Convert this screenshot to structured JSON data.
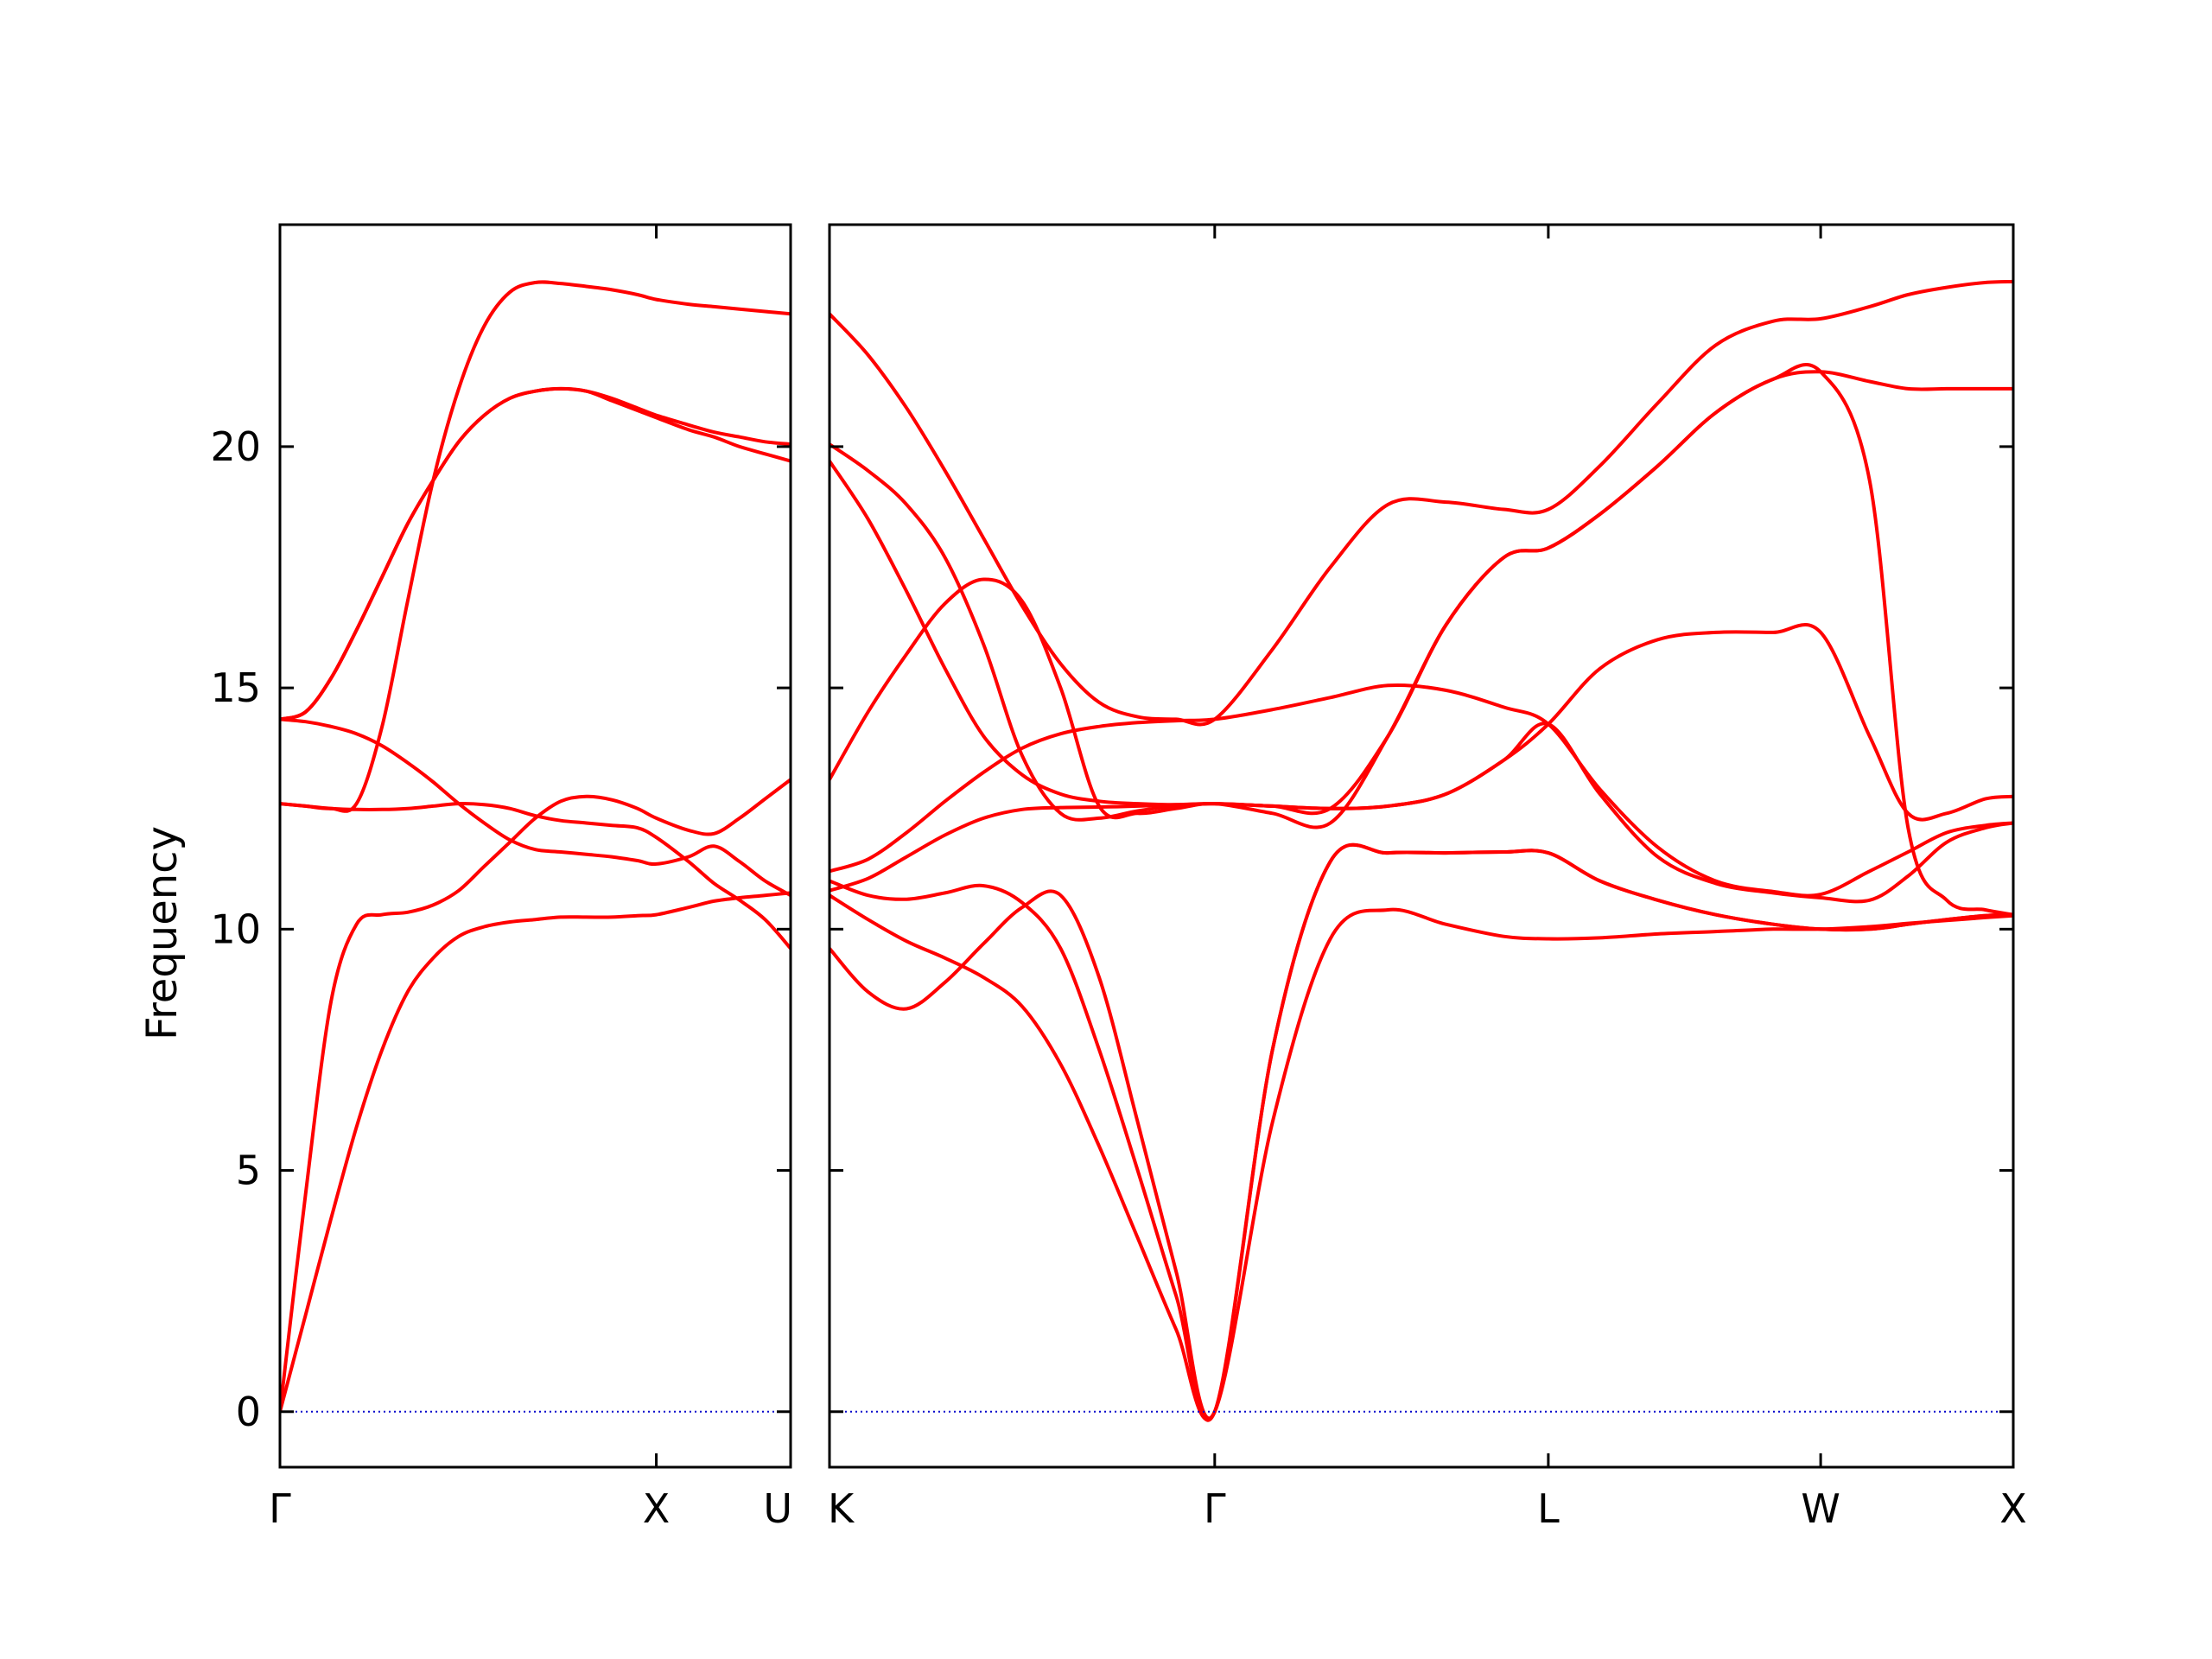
{
  "chart_data": {
    "type": "line",
    "ylabel": "Frequency",
    "ylim": [
      -1.15,
      24.6
    ],
    "yticks": [
      0,
      5,
      10,
      15,
      20
    ],
    "colors": {
      "bands": "#ff0000",
      "zero_line": "#0000cc",
      "frame": "#000000"
    },
    "zero_line": {
      "value": 0,
      "style": "dotted"
    },
    "panels": [
      {
        "name": "Γ–X–U",
        "x_labels": [
          "Γ",
          "X",
          "U"
        ],
        "series": [
          {
            "x": [
              0,
              0.05,
              0.1,
              0.15,
              0.2,
              0.25,
              0.3,
              0.35,
              0.4,
              0.45,
              0.5,
              0.55,
              0.6,
              0.65,
              0.7,
              0.737,
              0.8,
              0.85,
              0.9,
              0.95,
              1.0
            ],
            "y": [
              0,
              2.0,
              4.0,
              5.9,
              7.5,
              8.7,
              9.4,
              9.85,
              10.05,
              10.15,
              10.2,
              10.25,
              10.25,
              10.25,
              10.28,
              10.3,
              10.45,
              10.58,
              10.65,
              10.7,
              10.75
            ]
          },
          {
            "x": [
              0,
              0.05,
              0.1,
              0.15,
              0.2,
              0.25,
              0.3,
              0.35,
              0.4,
              0.45,
              0.5,
              0.55,
              0.6,
              0.65,
              0.7,
              0.737,
              0.8,
              0.85,
              0.9,
              0.95,
              1.0
            ],
            "y": [
              0,
              4.5,
              8.5,
              10.1,
              10.3,
              10.35,
              10.5,
              10.8,
              11.3,
              11.8,
              12.3,
              12.65,
              12.75,
              12.68,
              12.5,
              12.3,
              12.05,
              11.98,
              12.3,
              12.7,
              13.1
            ]
          },
          {
            "x": [
              0,
              0.05,
              0.1,
              0.15,
              0.2,
              0.25,
              0.3,
              0.35,
              0.4,
              0.45,
              0.5,
              0.55,
              0.6,
              0.65,
              0.7,
              0.737,
              0.8,
              0.85,
              0.9,
              0.95,
              1.0
            ],
            "y": [
              12.6,
              12.55,
              12.5,
              12.48,
              12.48,
              12.5,
              12.55,
              12.6,
              12.58,
              12.5,
              12.35,
              12.25,
              12.2,
              12.15,
              12.1,
              11.9,
              11.4,
              10.95,
              10.6,
              10.2,
              9.6
            ]
          },
          {
            "x": [
              0,
              0.05,
              0.1,
              0.15,
              0.2,
              0.25,
              0.3,
              0.35,
              0.4,
              0.45,
              0.5,
              0.55,
              0.6,
              0.65,
              0.7,
              0.737,
              0.8,
              0.85,
              0.9,
              0.95,
              1.0
            ],
            "y": [
              14.35,
              14.3,
              14.2,
              14.05,
              13.8,
              13.45,
              13.05,
              12.6,
              12.2,
              11.85,
              11.65,
              11.6,
              11.55,
              11.5,
              11.42,
              11.35,
              11.5,
              11.72,
              11.4,
              11.0,
              10.7
            ]
          },
          {
            "x": [
              0,
              0.05,
              0.1,
              0.15,
              0.2,
              0.25,
              0.3,
              0.35,
              0.4,
              0.45,
              0.5,
              0.55,
              0.6,
              0.65,
              0.7,
              0.737,
              0.8,
              0.85,
              0.9,
              0.95,
              1.0
            ],
            "y": [
              12.6,
              12.55,
              12.5,
              12.6,
              14.2,
              16.8,
              19.3,
              21.2,
              22.5,
              23.2,
              23.4,
              23.38,
              23.32,
              23.25,
              23.15,
              23.05,
              22.95,
              22.9,
              22.85,
              22.8,
              22.75
            ]
          },
          {
            "x": [
              0,
              0.05,
              0.1,
              0.15,
              0.2,
              0.25,
              0.3,
              0.35,
              0.4,
              0.45,
              0.5,
              0.55,
              0.6,
              0.65,
              0.7,
              0.737,
              0.8,
              0.85,
              0.9,
              0.95,
              1.0
            ],
            "y": [
              14.35,
              14.5,
              15.2,
              16.2,
              17.3,
              18.4,
              19.3,
              20.1,
              20.65,
              21.0,
              21.15,
              21.2,
              21.15,
              21.0,
              20.8,
              20.65,
              20.45,
              20.3,
              20.2,
              20.1,
              20.05
            ]
          },
          {
            "x": [
              0,
              0.05,
              0.1,
              0.15,
              0.2,
              0.25,
              0.3,
              0.35,
              0.4,
              0.45,
              0.5,
              0.55,
              0.6,
              0.65,
              0.7,
              0.737,
              0.8,
              0.85,
              0.9,
              0.95,
              1.0
            ],
            "y": [
              14.35,
              14.5,
              15.2,
              16.2,
              17.3,
              18.4,
              19.3,
              20.1,
              20.65,
              21.0,
              21.15,
              21.2,
              21.15,
              20.95,
              20.75,
              20.6,
              20.35,
              20.2,
              20.0,
              19.85,
              19.7
            ]
          }
        ]
      },
      {
        "name": "K–Γ–L–W–X",
        "x_labels": [
          "K",
          "Γ",
          "L",
          "W",
          "X"
        ],
        "x_ticks": [
          0,
          1.0,
          1.866,
          2.573,
          3.073
        ],
        "series": [
          {
            "x": [
              0,
              0.1,
              0.2,
              0.3,
              0.4,
              0.5,
              0.6,
              0.7,
              0.8,
              0.9,
              1.0,
              1.15,
              1.3,
              1.45,
              1.6,
              1.75,
              1.866,
              2.0,
              2.15,
              2.3,
              2.45,
              2.573,
              2.7,
              2.8,
              2.9,
              3.0,
              3.073
            ],
            "y": [
              10.7,
              10.2,
              9.75,
              9.4,
              9.0,
              8.4,
              7.2,
              5.5,
              3.6,
              1.7,
              0,
              6.0,
              9.8,
              10.4,
              10.1,
              9.85,
              9.8,
              9.82,
              9.9,
              9.95,
              10.0,
              10.0,
              10.05,
              10.12,
              10.18,
              10.24,
              10.28
            ]
          },
          {
            "x": [
              0,
              0.1,
              0.2,
              0.3,
              0.4,
              0.5,
              0.6,
              0.7,
              0.8,
              0.9,
              1.0,
              1.15,
              1.3,
              1.45,
              1.6,
              1.75,
              1.866,
              2.0,
              2.15,
              2.3,
              2.45,
              2.573,
              2.7,
              2.8,
              2.9,
              3.0,
              3.073
            ],
            "y": [
              11.0,
              10.7,
              10.62,
              10.75,
              10.9,
              10.55,
              9.6,
              7.5,
              5.0,
              2.4,
              0,
              7.5,
              11.4,
              11.58,
              11.58,
              11.6,
              11.58,
              11.0,
              10.6,
              10.3,
              10.1,
              10.0,
              10.0,
              10.1,
              10.2,
              10.28,
              10.3
            ]
          },
          {
            "x": [
              0,
              0.1,
              0.2,
              0.3,
              0.4,
              0.5,
              0.6,
              0.7,
              0.8,
              0.9,
              1.0,
              1.15,
              1.3,
              1.45,
              1.6,
              1.75,
              1.866,
              2.0,
              2.15,
              2.3,
              2.45,
              2.573,
              2.7,
              2.8,
              2.9,
              3.0,
              3.073
            ],
            "y": [
              9.6,
              8.7,
              8.35,
              8.9,
              9.7,
              10.45,
              10.7,
              9.0,
              6.0,
              2.9,
              0,
              7.5,
              11.4,
              11.58,
              11.58,
              11.6,
              11.58,
              11.0,
              10.6,
              10.3,
              10.1,
              10.0,
              10.0,
              10.1,
              10.2,
              10.28,
              10.3
            ]
          },
          {
            "x": [
              0,
              0.1,
              0.2,
              0.3,
              0.4,
              0.5,
              0.6,
              0.7,
              0.8,
              0.9,
              1.0,
              1.15,
              1.3,
              1.45,
              1.6,
              1.75,
              1.866,
              2.0,
              2.15,
              2.3,
              2.45,
              2.573,
              2.7,
              2.8,
              2.9,
              3.0,
              3.073
            ],
            "y": [
              10.8,
              11.05,
              11.5,
              11.95,
              12.3,
              12.48,
              12.52,
              12.53,
              12.55,
              12.58,
              12.6,
              12.55,
              12.5,
              12.55,
              12.8,
              13.5,
              14.25,
              12.8,
              11.5,
              10.95,
              10.75,
              10.65,
              10.6,
              11.1,
              11.8,
              12.1,
              12.2
            ]
          },
          {
            "x": [
              0,
              0.1,
              0.2,
              0.3,
              0.4,
              0.5,
              0.6,
              0.7,
              0.8,
              0.9,
              1.0,
              1.15,
              1.3,
              1.45,
              1.6,
              1.75,
              1.866,
              2.0,
              2.15,
              2.3,
              2.45,
              2.573,
              2.7,
              2.8,
              2.9,
              3.0,
              3.073
            ],
            "y": [
              11.2,
              11.45,
              12.0,
              12.65,
              13.25,
              13.75,
              14.05,
              14.2,
              14.28,
              14.32,
              14.35,
              14.55,
              14.8,
              15.05,
              14.95,
              14.6,
              14.25,
              12.9,
              11.7,
              11.0,
              10.78,
              10.72,
              11.2,
              11.6,
              12.0,
              12.15,
              12.2
            ]
          },
          {
            "x": [
              0,
              0.1,
              0.2,
              0.3,
              0.4,
              0.5,
              0.6,
              0.7,
              0.8,
              0.9,
              1.0,
              1.15,
              1.3,
              1.45,
              1.6,
              1.75,
              1.866,
              2.0,
              2.15,
              2.3,
              2.45,
              2.573,
              2.7,
              2.8,
              2.9,
              3.0,
              3.073
            ],
            "y": [
              13.1,
              14.5,
              15.7,
              16.75,
              17.25,
              16.8,
              15.0,
              12.55,
              12.4,
              12.5,
              12.6,
              12.4,
              12.2,
              14.0,
              16.3,
              17.7,
              17.9,
              18.6,
              19.6,
              20.7,
              21.4,
              21.55,
              21.35,
              21.2,
              21.2,
              21.2,
              21.2
            ]
          },
          {
            "x": [
              0,
              0.1,
              0.2,
              0.3,
              0.4,
              0.5,
              0.6,
              0.7,
              0.8,
              0.9,
              1.0,
              1.15,
              1.3,
              1.45,
              1.6,
              1.75,
              1.866,
              2.0,
              2.15,
              2.3,
              2.45,
              2.573,
              2.7,
              2.8,
              2.9,
              3.0,
              3.073
            ],
            "y": [
              20.05,
              19.5,
              18.8,
              17.7,
              15.9,
              13.6,
              12.4,
              12.3,
              12.45,
              12.55,
              12.6,
              12.55,
              12.5,
              12.55,
              12.8,
              13.5,
              14.25,
              15.4,
              16.0,
              16.15,
              16.15,
              16.15,
              14.0,
              12.4,
              12.4,
              12.7,
              12.75
            ]
          },
          {
            "x": [
              0,
              0.1,
              0.2,
              0.3,
              0.4,
              0.5,
              0.6,
              0.7,
              0.8,
              0.9,
              1.0,
              1.15,
              1.3,
              1.45,
              1.6,
              1.75,
              1.866,
              2.0,
              2.15,
              2.3,
              2.45,
              2.573,
              2.7,
              2.8,
              2.9,
              3.0,
              3.073
            ],
            "y": [
              19.7,
              18.5,
              17.0,
              15.4,
              14.0,
              13.2,
              12.8,
              12.65,
              12.6,
              12.58,
              12.6,
              12.55,
              12.5,
              14.0,
              16.3,
              17.7,
              17.9,
              18.6,
              19.6,
              20.7,
              21.4,
              21.55,
              19.3,
              12.1,
              10.6,
              10.4,
              10.3
            ]
          },
          {
            "x": [
              0,
              0.1,
              0.2,
              0.3,
              0.4,
              0.5,
              0.6,
              0.7,
              0.8,
              0.9,
              1.0,
              1.15,
              1.3,
              1.45,
              1.6,
              1.75,
              1.866,
              2.0,
              2.15,
              2.3,
              2.45,
              2.573,
              2.7,
              2.8,
              2.9,
              3.0,
              3.073
            ],
            "y": [
              22.75,
              21.9,
              20.8,
              19.5,
              18.1,
              16.7,
              15.5,
              14.7,
              14.4,
              14.35,
              14.35,
              15.8,
              17.5,
              18.8,
              18.85,
              18.7,
              18.7,
              19.6,
              20.9,
              22.1,
              22.6,
              22.65,
              22.9,
              23.15,
              23.3,
              23.4,
              23.42
            ]
          }
        ]
      }
    ]
  }
}
